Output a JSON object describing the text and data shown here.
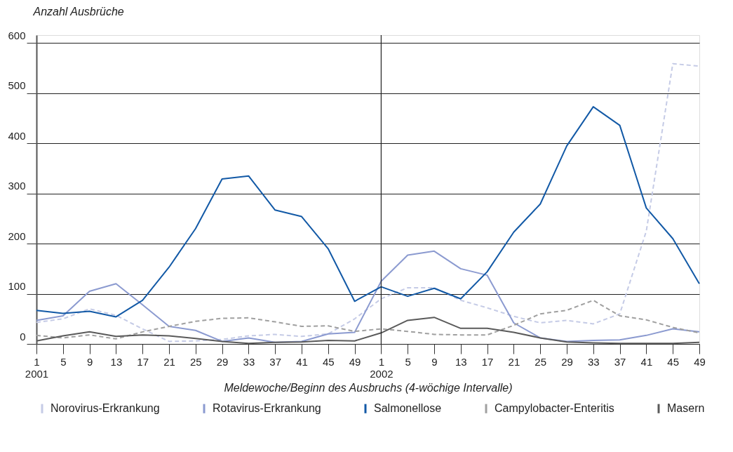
{
  "chart_data": {
    "type": "line",
    "ylabel": "Anzahl Ausbrüche",
    "xlabel": "Meldewoche/Beginn des Ausbruchs (4-wöchige Intervalle)",
    "categories": [
      "1\n2001",
      "5",
      "9",
      "13",
      "17",
      "21",
      "25",
      "29",
      "33",
      "37",
      "41",
      "45",
      "49",
      "1\n2002",
      "5",
      "9",
      "13",
      "17",
      "21",
      "25",
      "29",
      "33",
      "37",
      "41",
      "45",
      "49"
    ],
    "ylim": [
      0,
      616
    ],
    "yticks": [
      0,
      100,
      200,
      300,
      400,
      500,
      600
    ],
    "grid": "y",
    "legend": "bottom",
    "ref_lines": [
      {
        "axis": "x",
        "value": "1\n2002",
        "color": "#222222"
      }
    ],
    "series": [
      {
        "name": "Norovirus-Erkrankung",
        "color": "#c5cbe6",
        "line_style": "dashed",
        "values": [
          43,
          50,
          70,
          57,
          30,
          5,
          6,
          9,
          16,
          19,
          15,
          20,
          50,
          90,
          112,
          112,
          87,
          72,
          55,
          42,
          47,
          40,
          60,
          225,
          559,
          554
        ]
      },
      {
        "name": "Rotavirus-Erkrankung",
        "color": "#8b9ad0",
        "line_style": "solid",
        "values": [
          47,
          56,
          105,
          120,
          78,
          35,
          27,
          5,
          12,
          3,
          5,
          20,
          23,
          125,
          177,
          185,
          150,
          137,
          42,
          12,
          5,
          7,
          8,
          17,
          30,
          24
        ]
      },
      {
        "name": "Salmonellose",
        "color": "#1259a6",
        "line_style": "solid",
        "values": [
          67,
          61,
          65,
          54,
          87,
          153,
          230,
          329,
          335,
          267,
          254,
          190,
          85,
          114,
          95,
          111,
          90,
          144,
          223,
          279,
          395,
          473,
          436,
          271,
          210,
          120
        ]
      },
      {
        "name": "Campylobacter-Enteritis",
        "color": "#a0a0a0",
        "line_style": "dashed",
        "values": [
          17,
          12,
          18,
          10,
          24,
          35,
          45,
          51,
          52,
          44,
          35,
          36,
          25,
          30,
          25,
          19,
          18,
          18,
          37,
          60,
          67,
          87,
          56,
          48,
          33,
          22
        ]
      },
      {
        "name": "Masern",
        "color": "#5a5a5a",
        "line_style": "solid",
        "values": [
          6,
          16,
          24,
          15,
          18,
          16,
          11,
          5,
          1,
          3,
          4,
          7,
          6,
          22,
          47,
          53,
          31,
          31,
          23,
          12,
          4,
          2,
          1,
          1,
          1,
          3
        ]
      }
    ]
  }
}
